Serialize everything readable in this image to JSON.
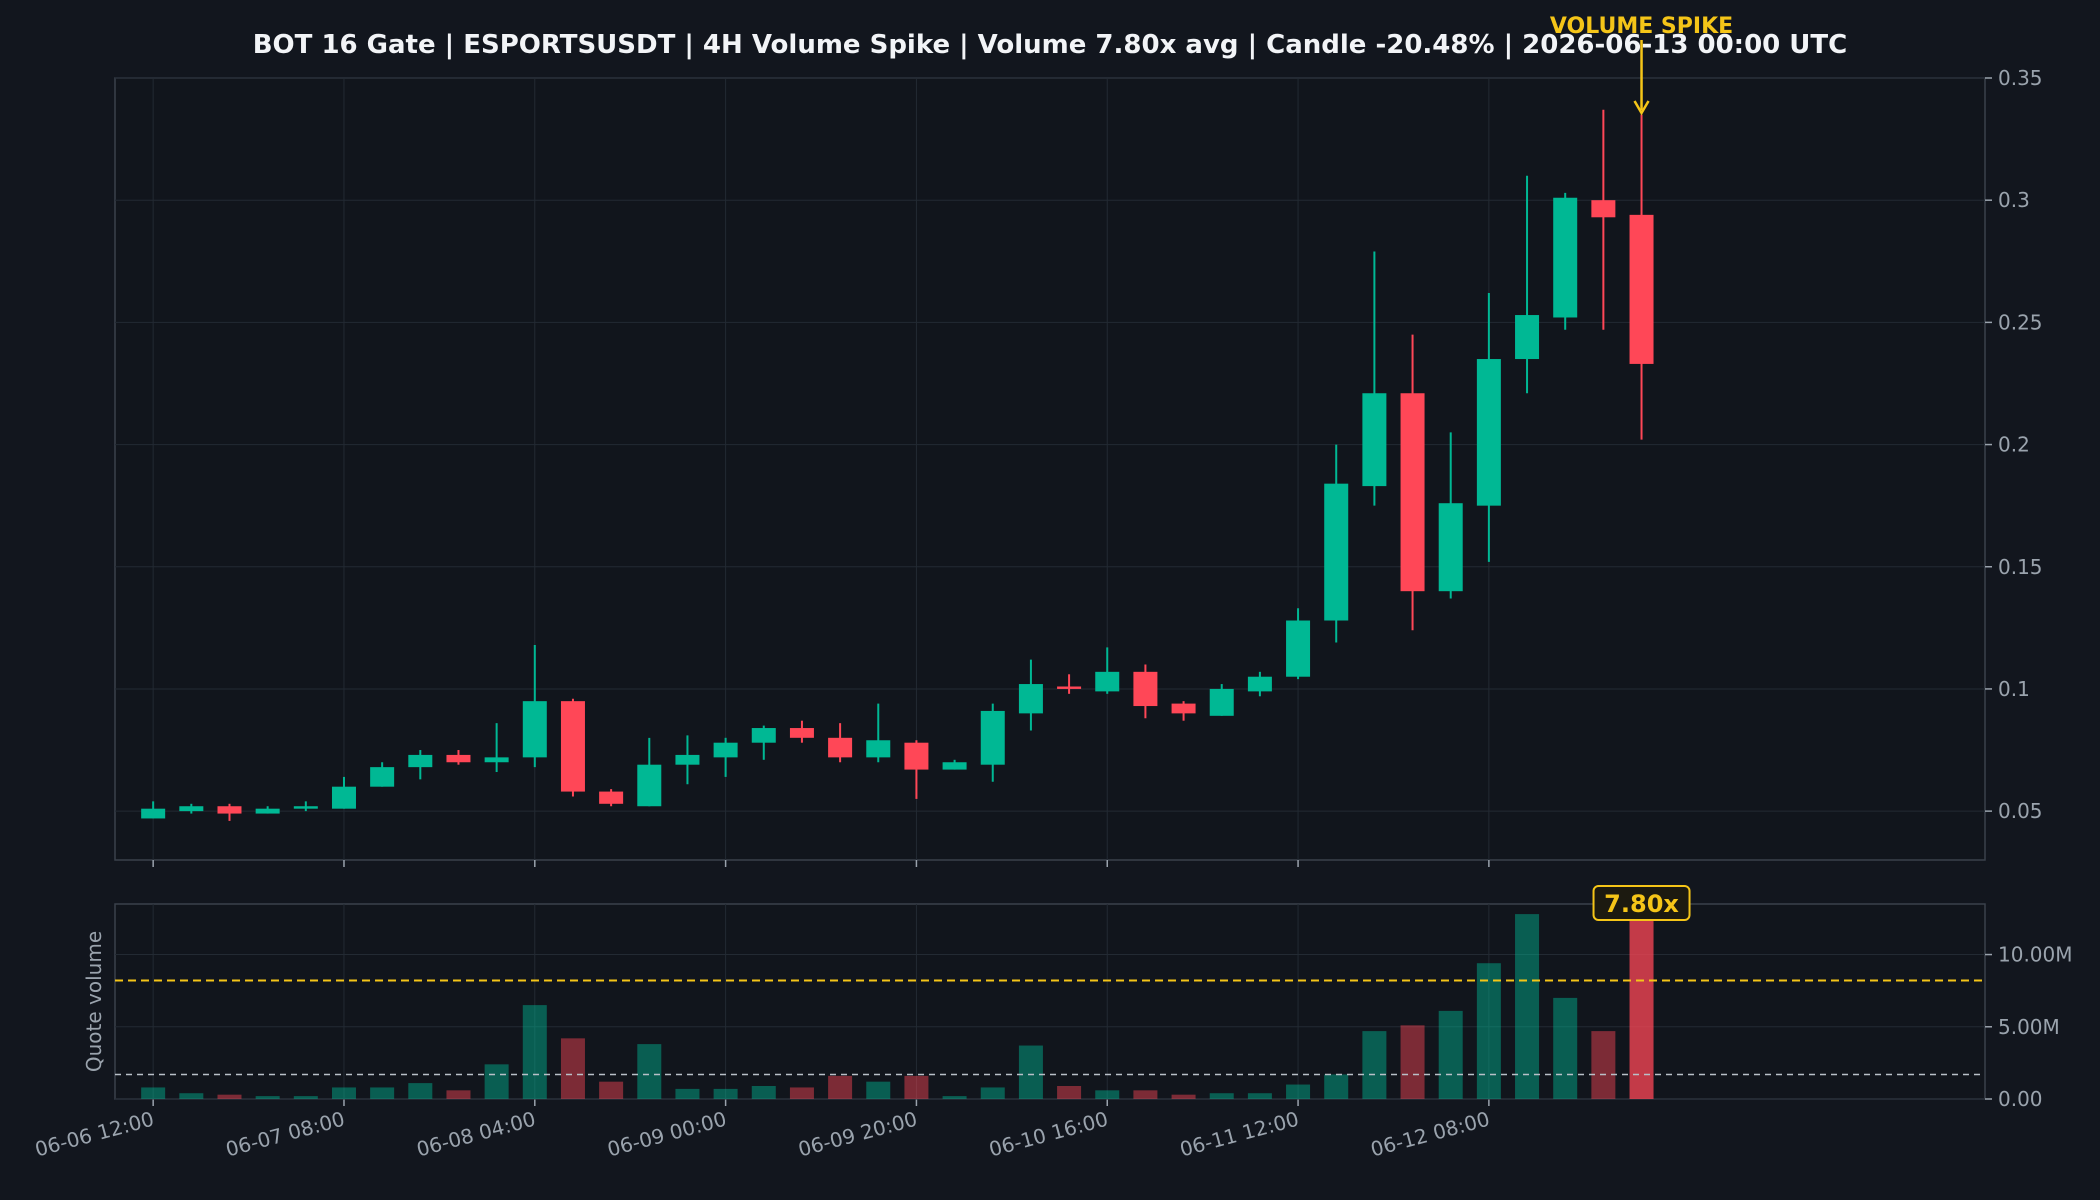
{
  "title": "BOT 16 Gate | ESPORTSUSDT | 4H Volume Spike | Volume 7.80x avg | Candle -20.48% | 2026-06-13 00:00 UTC",
  "colors": {
    "up": "#00b894",
    "down": "#ff4757",
    "accent": "#f5c518",
    "background": "#12161e",
    "panel": "#11151c"
  },
  "chart_data": {
    "type": "candlestick",
    "price_axis": {
      "ylim": [
        0.03,
        0.35
      ],
      "ticks": [
        0.05,
        0.1,
        0.15,
        0.2,
        0.25,
        0.3,
        0.35
      ],
      "tick_labels": [
        "0.05",
        "0.1",
        "0.15",
        "0.2",
        "0.25",
        "0.3",
        "0.35"
      ]
    },
    "volume_axis": {
      "label": "Quote volume",
      "ylim": [
        0,
        13500000
      ],
      "ticks": [
        0,
        5000000,
        10000000
      ],
      "tick_labels": [
        "0.00",
        "5.00M",
        "10.00M"
      ],
      "avg_line": 8200000,
      "baseline_line": 1700000
    },
    "x_ticks": [
      {
        "index": 0,
        "label": "06-06 12:00"
      },
      {
        "index": 5,
        "label": "06-07 08:00"
      },
      {
        "index": 10,
        "label": "06-08 04:00"
      },
      {
        "index": 15,
        "label": "06-09 00:00"
      },
      {
        "index": 20,
        "label": "06-09 20:00"
      },
      {
        "index": 25,
        "label": "06-10 16:00"
      },
      {
        "index": 30,
        "label": "06-11 12:00"
      },
      {
        "index": 35,
        "label": "06-12 08:00"
      }
    ],
    "x_range": [
      -1,
      48
    ],
    "candles": [
      {
        "o": 0.047,
        "h": 0.054,
        "l": 0.047,
        "c": 0.051,
        "v": 800000
      },
      {
        "o": 0.05,
        "h": 0.053,
        "l": 0.049,
        "c": 0.052,
        "v": 400000
      },
      {
        "o": 0.052,
        "h": 0.053,
        "l": 0.046,
        "c": 0.049,
        "v": 300000
      },
      {
        "o": 0.049,
        "h": 0.052,
        "l": 0.049,
        "c": 0.051,
        "v": 200000
      },
      {
        "o": 0.051,
        "h": 0.054,
        "l": 0.05,
        "c": 0.052,
        "v": 200000
      },
      {
        "o": 0.051,
        "h": 0.064,
        "l": 0.051,
        "c": 0.06,
        "v": 800000
      },
      {
        "o": 0.06,
        "h": 0.07,
        "l": 0.06,
        "c": 0.068,
        "v": 800000
      },
      {
        "o": 0.068,
        "h": 0.075,
        "l": 0.063,
        "c": 0.073,
        "v": 1100000
      },
      {
        "o": 0.073,
        "h": 0.075,
        "l": 0.069,
        "c": 0.07,
        "v": 600000
      },
      {
        "o": 0.07,
        "h": 0.086,
        "l": 0.066,
        "c": 0.072,
        "v": 2400000
      },
      {
        "o": 0.072,
        "h": 0.118,
        "l": 0.068,
        "c": 0.095,
        "v": 6500000
      },
      {
        "o": 0.095,
        "h": 0.096,
        "l": 0.056,
        "c": 0.058,
        "v": 4200000
      },
      {
        "o": 0.058,
        "h": 0.059,
        "l": 0.052,
        "c": 0.053,
        "v": 1200000
      },
      {
        "o": 0.052,
        "h": 0.08,
        "l": 0.052,
        "c": 0.069,
        "v": 3800000
      },
      {
        "o": 0.069,
        "h": 0.081,
        "l": 0.061,
        "c": 0.073,
        "v": 700000
      },
      {
        "o": 0.072,
        "h": 0.08,
        "l": 0.064,
        "c": 0.078,
        "v": 700000
      },
      {
        "o": 0.078,
        "h": 0.085,
        "l": 0.071,
        "c": 0.084,
        "v": 900000
      },
      {
        "o": 0.084,
        "h": 0.087,
        "l": 0.078,
        "c": 0.08,
        "v": 800000
      },
      {
        "o": 0.08,
        "h": 0.086,
        "l": 0.07,
        "c": 0.072,
        "v": 1600000
      },
      {
        "o": 0.072,
        "h": 0.094,
        "l": 0.07,
        "c": 0.079,
        "v": 1200000
      },
      {
        "o": 0.078,
        "h": 0.079,
        "l": 0.055,
        "c": 0.067,
        "v": 1600000
      },
      {
        "o": 0.067,
        "h": 0.071,
        "l": 0.067,
        "c": 0.07,
        "v": 200000
      },
      {
        "o": 0.069,
        "h": 0.094,
        "l": 0.062,
        "c": 0.091,
        "v": 800000
      },
      {
        "o": 0.09,
        "h": 0.112,
        "l": 0.083,
        "c": 0.102,
        "v": 3700000
      },
      {
        "o": 0.101,
        "h": 0.106,
        "l": 0.098,
        "c": 0.1,
        "v": 900000
      },
      {
        "o": 0.099,
        "h": 0.117,
        "l": 0.098,
        "c": 0.107,
        "v": 600000
      },
      {
        "o": 0.107,
        "h": 0.11,
        "l": 0.088,
        "c": 0.093,
        "v": 600000
      },
      {
        "o": 0.094,
        "h": 0.095,
        "l": 0.087,
        "c": 0.09,
        "v": 300000
      },
      {
        "o": 0.089,
        "h": 0.102,
        "l": 0.089,
        "c": 0.1,
        "v": 400000
      },
      {
        "o": 0.099,
        "h": 0.107,
        "l": 0.097,
        "c": 0.105,
        "v": 400000
      },
      {
        "o": 0.105,
        "h": 0.133,
        "l": 0.104,
        "c": 0.128,
        "v": 1000000
      },
      {
        "o": 0.128,
        "h": 0.2,
        "l": 0.119,
        "c": 0.184,
        "v": 1700000
      },
      {
        "o": 0.183,
        "h": 0.279,
        "l": 0.175,
        "c": 0.221,
        "v": 4700000
      },
      {
        "o": 0.221,
        "h": 0.245,
        "l": 0.124,
        "c": 0.14,
        "v": 5100000
      },
      {
        "o": 0.14,
        "h": 0.205,
        "l": 0.137,
        "c": 0.176,
        "v": 6100000
      },
      {
        "o": 0.175,
        "h": 0.262,
        "l": 0.152,
        "c": 0.235,
        "v": 9400000
      },
      {
        "o": 0.235,
        "h": 0.31,
        "l": 0.221,
        "c": 0.253,
        "v": 12800000
      },
      {
        "o": 0.252,
        "h": 0.303,
        "l": 0.247,
        "c": 0.301,
        "v": 7000000
      },
      {
        "o": 0.3,
        "h": 0.337,
        "l": 0.247,
        "c": 0.293,
        "v": 4700000
      },
      {
        "o": 0.294,
        "h": 0.335,
        "l": 0.202,
        "c": 0.233,
        "v": 13200000
      }
    ],
    "annotations": {
      "spike_label": "VOLUME SPIKE",
      "spike_index": 39,
      "badge": "7.80x"
    },
    "grid": true
  }
}
